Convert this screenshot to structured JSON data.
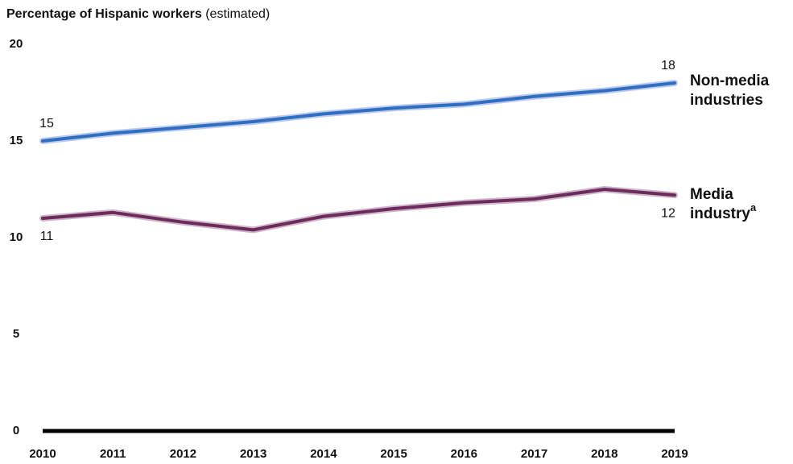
{
  "chart_data": {
    "type": "line",
    "title": "Percentage of Hispanic workers",
    "subtitle": "(estimated)",
    "x": [
      2010,
      2011,
      2012,
      2013,
      2014,
      2015,
      2016,
      2017,
      2018,
      2019
    ],
    "series": [
      {
        "name": "Non-media industries",
        "color": "#2f6fc1",
        "halo": "#bccbec",
        "values": [
          15.0,
          15.4,
          15.7,
          16.0,
          16.4,
          16.7,
          16.9,
          17.3,
          17.6,
          18.0
        ],
        "value_labels": [
          "15",
          null,
          null,
          null,
          null,
          null,
          null,
          null,
          null,
          "18"
        ]
      },
      {
        "name": "Media industry",
        "name_note": "a",
        "color": "#6d2a5d",
        "halo": "#cdb6c8",
        "values": [
          11.0,
          11.3,
          10.8,
          10.4,
          11.1,
          11.5,
          11.8,
          12.0,
          12.5,
          12.2
        ],
        "value_labels": [
          "11",
          null,
          null,
          null,
          null,
          null,
          null,
          null,
          null,
          "12"
        ]
      }
    ],
    "ylim": [
      0,
      20
    ],
    "yticks": [
      0,
      5,
      10,
      15,
      20
    ],
    "grid": false
  }
}
